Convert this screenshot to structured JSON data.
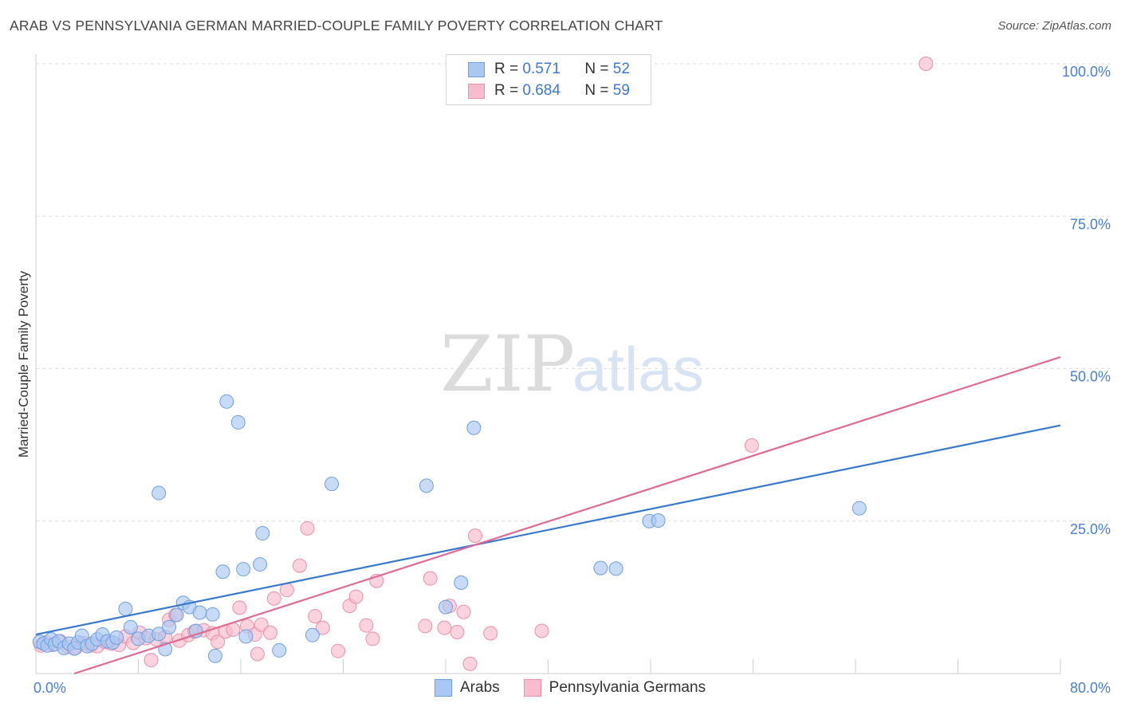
{
  "title": "ARAB VS PENNSYLVANIA GERMAN MARRIED-COUPLE FAMILY POVERTY CORRELATION CHART",
  "source": "Source: ZipAtlas.com",
  "watermark": {
    "zip": "ZIP",
    "atlas": "atlas"
  },
  "legend": {
    "arabs": {
      "r_label": "R =",
      "r_value": "0.571",
      "n_label": "N =",
      "n_value": "52"
    },
    "pg": {
      "r_label": "R =",
      "r_value": "0.684",
      "n_label": "N =",
      "n_value": "59"
    }
  },
  "colors": {
    "arabs_fill": "#a9c8f2",
    "arabs_stroke": "#6e9fe0",
    "arabs_line": "#3a78d0",
    "pg_fill": "#f7bccd",
    "pg_stroke": "#eb8faa",
    "pg_line": "#e06a94",
    "accent_text": "#4a7fcc"
  },
  "chart_data": {
    "type": "scatter",
    "title": "ARAB VS PENNSYLVANIA GERMAN MARRIED-COUPLE FAMILY POVERTY CORRELATION CHART",
    "xlabel": "",
    "ylabel": "Married-Couple Family Poverty",
    "xlim": [
      0,
      80
    ],
    "ylim": [
      0,
      100
    ],
    "x_tick_labels": [
      "0.0%",
      "80.0%"
    ],
    "y_ticks": [
      25,
      50,
      75,
      100
    ],
    "y_tick_labels": [
      "25.0%",
      "50.0%",
      "75.0%",
      "100.0%"
    ],
    "grid": true,
    "series": [
      {
        "name": "Arabs",
        "r": 0.571,
        "n": 52,
        "trend": {
          "x": [
            0,
            80
          ],
          "y": [
            6.4,
            40.7
          ]
        },
        "points": [
          [
            0.3,
            5.2
          ],
          [
            0.6,
            4.9
          ],
          [
            0.9,
            4.6
          ],
          [
            1.2,
            5.6
          ],
          [
            1.5,
            4.8
          ],
          [
            1.8,
            5.3
          ],
          [
            2.2,
            4.2
          ],
          [
            2.6,
            4.9
          ],
          [
            3.0,
            4.1
          ],
          [
            3.3,
            5.1
          ],
          [
            3.6,
            6.2
          ],
          [
            4.0,
            4.5
          ],
          [
            4.4,
            4.9
          ],
          [
            4.8,
            5.6
          ],
          [
            5.2,
            6.4
          ],
          [
            5.6,
            5.3
          ],
          [
            6.0,
            5.1
          ],
          [
            6.3,
            5.9
          ],
          [
            7.0,
            10.6
          ],
          [
            7.4,
            7.6
          ],
          [
            8.0,
            5.7
          ],
          [
            8.8,
            6.2
          ],
          [
            9.6,
            6.5
          ],
          [
            10.1,
            4.0
          ],
          [
            10.4,
            7.6
          ],
          [
            11.0,
            9.6
          ],
          [
            11.5,
            11.6
          ],
          [
            12.0,
            10.9
          ],
          [
            12.5,
            7.0
          ],
          [
            12.8,
            10.0
          ],
          [
            13.8,
            9.7
          ],
          [
            14.0,
            2.9
          ],
          [
            14.6,
            16.7
          ],
          [
            14.9,
            44.6
          ],
          [
            15.8,
            41.2
          ],
          [
            16.2,
            17.1
          ],
          [
            16.4,
            6.1
          ],
          [
            17.5,
            17.9
          ],
          [
            17.7,
            23.0
          ],
          [
            19.0,
            3.8
          ],
          [
            21.6,
            6.3
          ],
          [
            23.1,
            31.1
          ],
          [
            30.5,
            30.8
          ],
          [
            32.0,
            10.9
          ],
          [
            33.2,
            14.9
          ],
          [
            34.2,
            40.3
          ],
          [
            44.1,
            17.3
          ],
          [
            45.3,
            17.2
          ],
          [
            47.9,
            25.0
          ],
          [
            48.6,
            25.1
          ],
          [
            64.3,
            27.1
          ],
          [
            9.6,
            29.6
          ]
        ]
      },
      {
        "name": "Pennsylvania Germans",
        "r": 0.684,
        "n": 59,
        "trend": {
          "x": [
            3.0,
            80
          ],
          "y": [
            0,
            51.9
          ]
        },
        "points": [
          [
            0.4,
            4.6
          ],
          [
            0.8,
            5.1
          ],
          [
            1.3,
            4.7
          ],
          [
            1.9,
            5.3
          ],
          [
            2.5,
            4.4
          ],
          [
            3.1,
            4.2
          ],
          [
            3.7,
            5.0
          ],
          [
            4.3,
            4.6
          ],
          [
            4.8,
            4.5
          ],
          [
            5.4,
            5.2
          ],
          [
            5.9,
            4.9
          ],
          [
            6.5,
            4.7
          ],
          [
            7.0,
            6.1
          ],
          [
            7.6,
            5.0
          ],
          [
            8.1,
            6.7
          ],
          [
            8.6,
            5.8
          ],
          [
            9.0,
            2.2
          ],
          [
            9.4,
            5.6
          ],
          [
            10.1,
            6.0
          ],
          [
            10.4,
            8.8
          ],
          [
            10.9,
            9.6
          ],
          [
            11.2,
            5.4
          ],
          [
            11.9,
            6.3
          ],
          [
            12.4,
            6.9
          ],
          [
            13.1,
            7.1
          ],
          [
            13.8,
            6.6
          ],
          [
            14.2,
            5.2
          ],
          [
            14.8,
            6.9
          ],
          [
            15.4,
            7.2
          ],
          [
            15.9,
            10.8
          ],
          [
            16.5,
            7.8
          ],
          [
            17.1,
            6.4
          ],
          [
            17.3,
            3.2
          ],
          [
            17.6,
            8.0
          ],
          [
            18.3,
            6.7
          ],
          [
            18.6,
            12.3
          ],
          [
            19.6,
            13.7
          ],
          [
            20.6,
            17.7
          ],
          [
            21.2,
            23.8
          ],
          [
            21.8,
            9.4
          ],
          [
            22.4,
            7.5
          ],
          [
            23.6,
            3.7
          ],
          [
            24.5,
            11.1
          ],
          [
            25.0,
            12.6
          ],
          [
            25.8,
            7.9
          ],
          [
            26.3,
            5.7
          ],
          [
            26.6,
            15.2
          ],
          [
            30.4,
            7.8
          ],
          [
            30.8,
            15.6
          ],
          [
            31.9,
            7.5
          ],
          [
            32.3,
            11.1
          ],
          [
            32.9,
            6.8
          ],
          [
            33.4,
            10.1
          ],
          [
            33.9,
            1.6
          ],
          [
            34.3,
            22.6
          ],
          [
            35.5,
            6.6
          ],
          [
            39.5,
            7.0
          ],
          [
            55.9,
            37.4
          ],
          [
            69.5,
            100.0
          ]
        ]
      }
    ]
  },
  "bottom_legend": {
    "arabs": "Arabs",
    "pg": "Pennsylvania Germans"
  }
}
